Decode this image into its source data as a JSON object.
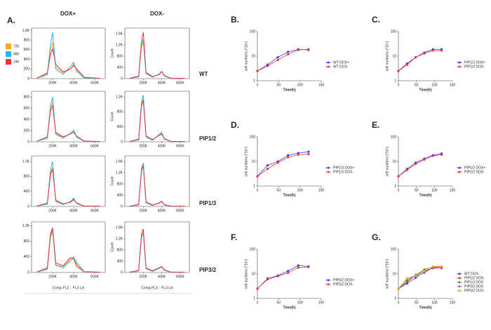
{
  "panel_a": {
    "label": "A.",
    "columns": [
      "DOX+",
      "DOX-"
    ],
    "rows": [
      "WT",
      "PIP1/2",
      "PIP1/3",
      "PIP3/2"
    ]
  },
  "chart_data": [
    {
      "type": "line",
      "legend": "left",
      "x": [
        50000,
        150000,
        180000,
        200000,
        230000,
        300000,
        370000,
        400000,
        430000,
        500000,
        650000
      ],
      "xlim": [
        0,
        700000
      ],
      "xticks": [
        {
          "value": 200000,
          "label": "200K"
        },
        {
          "value": 400000,
          "label": "400K"
        },
        {
          "value": 600000,
          "label": "600K"
        }
      ],
      "ylim": [
        0,
        1050
      ],
      "yticks": [
        0,
        200,
        400,
        600,
        800,
        {
          "value": 1000,
          "label": "1.0K"
        }
      ],
      "series": [
        {
          "name": "72h",
          "color": "#f5a623",
          "values": [
            10,
            100,
            600,
            750,
            250,
            120,
            200,
            300,
            180,
            20,
            5
          ]
        },
        {
          "name": "48h",
          "color": "#29b6e8",
          "values": [
            10,
            80,
            700,
            960,
            200,
            90,
            250,
            340,
            150,
            15,
            5
          ]
        },
        {
          "name": "24h",
          "color": "#e8333c",
          "values": [
            10,
            120,
            500,
            620,
            300,
            140,
            200,
            270,
            200,
            30,
            5
          ]
        }
      ]
    },
    {
      "type": "line",
      "ylabel": "Count",
      "x": [
        50000,
        150000,
        180000,
        200000,
        230000,
        300000,
        370000,
        400000,
        430000,
        500000,
        650000
      ],
      "xlim": [
        0,
        700000
      ],
      "xticks": [
        {
          "value": 200000,
          "label": "200K"
        },
        {
          "value": 400000,
          "label": "400K"
        },
        {
          "value": 600000,
          "label": "600K"
        }
      ],
      "ylim": [
        0,
        1800
      ],
      "yticks": [
        0,
        400,
        800,
        {
          "value": 1200,
          "label": "1.2K"
        },
        {
          "value": 1600,
          "label": "1.6K"
        }
      ],
      "series": [
        {
          "name": "72h",
          "color": "#f5a623",
          "values": [
            10,
            80,
            1100,
            1300,
            200,
            60,
            150,
            250,
            100,
            10,
            5
          ]
        },
        {
          "name": "48h",
          "color": "#29b6e8",
          "values": [
            10,
            60,
            1200,
            1400,
            180,
            50,
            160,
            260,
            90,
            10,
            5
          ]
        },
        {
          "name": "24h",
          "color": "#e8333c",
          "values": [
            10,
            90,
            1300,
            1650,
            220,
            70,
            140,
            240,
            110,
            15,
            5
          ]
        }
      ]
    },
    {
      "type": "line",
      "x": [
        50000,
        150000,
        180000,
        200000,
        230000,
        300000,
        370000,
        400000,
        430000,
        500000,
        650000
      ],
      "xlim": [
        0,
        700000
      ],
      "xticks": [
        {
          "value": 200000,
          "label": "200K"
        },
        {
          "value": 400000,
          "label": "400K"
        },
        {
          "value": 600000,
          "label": "600K"
        }
      ],
      "ylim": [
        0,
        900
      ],
      "yticks": [
        0,
        200,
        400,
        600,
        800
      ],
      "series": [
        {
          "name": "72h",
          "color": "#f5a623",
          "values": [
            10,
            80,
            600,
            700,
            150,
            80,
            150,
            180,
            90,
            10,
            5
          ]
        },
        {
          "name": "48h",
          "color": "#29b6e8",
          "values": [
            10,
            60,
            650,
            800,
            130,
            70,
            150,
            210,
            80,
            10,
            5
          ]
        },
        {
          "name": "24h",
          "color": "#e8333c",
          "values": [
            10,
            90,
            550,
            650,
            170,
            90,
            140,
            170,
            100,
            15,
            5
          ]
        }
      ]
    },
    {
      "type": "line",
      "ylabel": "Count",
      "x": [
        50000,
        150000,
        180000,
        200000,
        230000,
        300000,
        370000,
        400000,
        430000,
        500000,
        650000
      ],
      "xlim": [
        0,
        700000
      ],
      "xticks": [
        {
          "value": 200000,
          "label": "200K"
        },
        {
          "value": 400000,
          "label": "400K"
        },
        {
          "value": 600000,
          "label": "600K"
        }
      ],
      "ylim": [
        0,
        1350
      ],
      "yticks": [
        0,
        400,
        800,
        {
          "value": 1200,
          "label": "1.2K"
        }
      ],
      "series": [
        {
          "name": "72h",
          "color": "#f5a623",
          "values": [
            10,
            60,
            1000,
            1150,
            150,
            50,
            180,
            220,
            80,
            10,
            5
          ]
        },
        {
          "name": "48h",
          "color": "#29b6e8",
          "values": [
            10,
            50,
            1050,
            1250,
            130,
            40,
            190,
            260,
            70,
            10,
            5
          ]
        },
        {
          "name": "24h",
          "color": "#e8333c",
          "values": [
            10,
            70,
            950,
            1100,
            160,
            60,
            170,
            200,
            90,
            10,
            5
          ]
        }
      ]
    },
    {
      "type": "line",
      "x": [
        50000,
        150000,
        180000,
        200000,
        230000,
        300000,
        370000,
        400000,
        430000,
        500000,
        650000
      ],
      "xlim": [
        0,
        700000
      ],
      "xticks": [
        {
          "value": 200000,
          "label": "200K"
        },
        {
          "value": 400000,
          "label": "400K"
        },
        {
          "value": 600000,
          "label": "600K"
        }
      ],
      "ylim": [
        0,
        1350
      ],
      "yticks": [
        0,
        400,
        800,
        {
          "value": 1200,
          "label": "1.2K"
        }
      ],
      "series": [
        {
          "name": "72h",
          "color": "#f5a623",
          "values": [
            10,
            80,
            900,
            1050,
            150,
            60,
            120,
            200,
            80,
            10,
            5
          ]
        },
        {
          "name": "48h",
          "color": "#29b6e8",
          "values": [
            10,
            60,
            1000,
            1200,
            130,
            50,
            130,
            220,
            70,
            10,
            5
          ]
        },
        {
          "name": "24h",
          "color": "#e8333c",
          "values": [
            10,
            90,
            850,
            1000,
            170,
            70,
            110,
            180,
            90,
            10,
            5
          ]
        }
      ]
    },
    {
      "type": "line",
      "ylabel": "Count",
      "x": [
        50000,
        150000,
        180000,
        200000,
        230000,
        300000,
        370000,
        400000,
        430000,
        500000,
        650000
      ],
      "xlim": [
        0,
        700000
      ],
      "xticks": [
        {
          "value": 200000,
          "label": "200K"
        },
        {
          "value": 400000,
          "label": "400K"
        },
        {
          "value": 600000,
          "label": "600K"
        }
      ],
      "ylim": [
        0,
        1800
      ],
      "yticks": [
        0,
        400,
        800,
        {
          "value": 1200,
          "label": "1.2K"
        },
        {
          "value": 1600,
          "label": "1.6K"
        }
      ],
      "series": [
        {
          "name": "72h",
          "color": "#f5a623",
          "values": [
            10,
            60,
            1300,
            1500,
            150,
            40,
            120,
            180,
            60,
            10,
            5
          ]
        },
        {
          "name": "48h",
          "color": "#29b6e8",
          "values": [
            10,
            50,
            1350,
            1550,
            130,
            30,
            130,
            190,
            50,
            10,
            5
          ]
        },
        {
          "name": "24h",
          "color": "#e8333c",
          "values": [
            10,
            70,
            1250,
            1450,
            160,
            50,
            110,
            170,
            70,
            10,
            5
          ]
        }
      ]
    },
    {
      "type": "line",
      "xlabel": "Comp-FL3 :: FL3 Lin",
      "x": [
        50000,
        150000,
        180000,
        200000,
        230000,
        300000,
        370000,
        400000,
        430000,
        500000,
        650000
      ],
      "xlim": [
        0,
        700000
      ],
      "xticks": [
        {
          "value": 200000,
          "label": "200K"
        },
        {
          "value": 400000,
          "label": "400K"
        },
        {
          "value": 600000,
          "label": "600K"
        }
      ],
      "ylim": [
        0,
        1300
      ],
      "yticks": [
        0,
        400,
        800,
        {
          "value": 1200,
          "label": "1.2K"
        }
      ],
      "series": [
        {
          "name": "72h",
          "color": "#f5a623",
          "values": [
            10,
            100,
            900,
            1050,
            200,
            150,
            350,
            400,
            200,
            20,
            5
          ]
        },
        {
          "name": "48h",
          "color": "#29b6e8",
          "values": [
            10,
            80,
            950,
            1100,
            180,
            120,
            300,
            380,
            250,
            20,
            5
          ]
        },
        {
          "name": "24h",
          "color": "#e8333c",
          "values": [
            10,
            120,
            1000,
            1150,
            250,
            170,
            380,
            350,
            150,
            20,
            5
          ]
        }
      ]
    },
    {
      "type": "line",
      "ylabel": "Count",
      "xlabel": "Comp-FL3 :: FL3 Lin",
      "x": [
        50000,
        150000,
        180000,
        200000,
        230000,
        300000,
        370000,
        400000,
        430000,
        500000,
        650000
      ],
      "xlim": [
        0,
        700000
      ],
      "xticks": [
        {
          "value": 200000,
          "label": "200K"
        },
        {
          "value": 400000,
          "label": "400K"
        },
        {
          "value": 600000,
          "label": "600K"
        }
      ],
      "ylim": [
        0,
        1800
      ],
      "yticks": [
        0,
        400,
        800,
        {
          "value": 1200,
          "label": "1.2K"
        },
        {
          "value": 1600,
          "label": "1.6K"
        }
      ],
      "series": [
        {
          "name": "72h",
          "color": "#f5a623",
          "values": [
            10,
            60,
            1300,
            1500,
            150,
            50,
            150,
            200,
            80,
            10,
            5
          ]
        },
        {
          "name": "48h",
          "color": "#29b6e8",
          "values": [
            10,
            50,
            1250,
            1400,
            130,
            40,
            140,
            190,
            70,
            10,
            5
          ]
        },
        {
          "name": "24h",
          "color": "#e8333c",
          "values": [
            10,
            70,
            1350,
            1550,
            160,
            60,
            160,
            210,
            90,
            10,
            5
          ]
        }
      ]
    },
    {
      "type": "line",
      "label": "B.",
      "markers": true,
      "legend": "right",
      "ylog": true,
      "xlabel": "Time(h)",
      "ylabel": "cell numbers (*10⁵)",
      "x": [
        0,
        24,
        48,
        72,
        96,
        120
      ],
      "xlim": [
        0,
        150
      ],
      "xticks": [
        0,
        50,
        100,
        150
      ],
      "ylim": [
        1,
        100
      ],
      "yticks": [
        1,
        10,
        100
      ],
      "series": [
        {
          "name": "WT DOX+",
          "color": "#3b3bf0",
          "values": [
            2.5,
            4.5,
            9,
            15,
            19,
            18
          ]
        },
        {
          "name": "WT DOX-",
          "color": "#e8333c",
          "values": [
            2.5,
            4,
            7,
            12,
            18,
            19
          ]
        }
      ]
    },
    {
      "type": "line",
      "label": "C.",
      "markers": true,
      "legend": "right",
      "ylog": true,
      "xlabel": "Time(h)",
      "ylabel": "cell numbers (*10⁵)",
      "x": [
        0,
        24,
        48,
        72,
        96,
        120
      ],
      "xlim": [
        0,
        150
      ],
      "xticks": [
        0,
        50,
        100,
        150
      ],
      "ylim": [
        1,
        100
      ],
      "yticks": [
        1,
        10,
        100
      ],
      "series": [
        {
          "name": "PIP1/2 DOX+",
          "color": "#3b3bf0",
          "values": [
            2.5,
            5,
            9,
            14,
            19,
            19
          ]
        },
        {
          "name": "PIP1/2 DOX-",
          "color": "#e8333c",
          "values": [
            2.5,
            4.5,
            9,
            13,
            17,
            17
          ]
        }
      ]
    },
    {
      "type": "line",
      "label": "D.",
      "markers": true,
      "legend": "right",
      "ylog": true,
      "xlabel": "Time(h)",
      "ylabel": "cell numbers (*10⁵)",
      "x": [
        0,
        24,
        48,
        72,
        96,
        120
      ],
      "xlim": [
        0,
        150
      ],
      "xticks": [
        0,
        50,
        100,
        150
      ],
      "ylim": [
        1,
        100
      ],
      "yticks": [
        1,
        10,
        100
      ],
      "series": [
        {
          "name": "PIP1/3 DOX+",
          "color": "#3b3bf0",
          "values": [
            2.5,
            7,
            10,
            18,
            22,
            25
          ]
        },
        {
          "name": "PIP1/3 DOX-",
          "color": "#e8333c",
          "values": [
            2.5,
            5,
            9,
            15,
            19,
            20
          ]
        }
      ]
    },
    {
      "type": "line",
      "label": "E.",
      "markers": true,
      "legend": "right",
      "ylog": true,
      "xlabel": "Time(h)",
      "ylabel": "cell numbers (*10⁵)",
      "x": [
        0,
        24,
        48,
        72,
        96,
        120
      ],
      "xlim": [
        0,
        150
      ],
      "xticks": [
        0,
        50,
        100,
        150
      ],
      "ylim": [
        1,
        100
      ],
      "yticks": [
        1,
        10,
        100
      ],
      "series": [
        {
          "name": "PIP1/2 DOX+",
          "color": "#3b3bf0",
          "values": [
            2.5,
            5,
            9,
            13,
            18,
            21
          ]
        },
        {
          "name": "PIP1/2 DOX-",
          "color": "#e8333c",
          "values": [
            2.5,
            4.5,
            8,
            12,
            17,
            19
          ]
        }
      ]
    },
    {
      "type": "line",
      "label": "F.",
      "markers": true,
      "legend": "right",
      "ylog": true,
      "xlabel": "Time(h)",
      "ylabel": "cell numbers (*10⁵)",
      "x": [
        0,
        24,
        48,
        72,
        96,
        120
      ],
      "xlim": [
        0,
        150
      ],
      "xticks": [
        0,
        50,
        100,
        150
      ],
      "ylim": [
        1,
        100
      ],
      "yticks": [
        1,
        10,
        100
      ],
      "series": [
        {
          "name": "PIP3/2 DOX+",
          "color": "#3b3bf0",
          "values": [
            2.5,
            6.5,
            8.5,
            13,
            22,
            20
          ]
        },
        {
          "name": "PIP3/2 DOX-",
          "color": "#e8333c",
          "values": [
            2.5,
            6,
            8,
            11,
            18,
            19
          ]
        }
      ]
    },
    {
      "type": "line",
      "label": "G.",
      "markers": true,
      "legend": "right",
      "ylog": true,
      "xlabel": "Time(h)",
      "ylabel": "cell numbers (*10⁵)",
      "x": [
        0,
        24,
        48,
        72,
        96,
        120
      ],
      "xlim": [
        0,
        150
      ],
      "xticks": [
        0,
        50,
        100,
        150
      ],
      "ylim": [
        1,
        100
      ],
      "yticks": [
        1,
        10,
        100
      ],
      "series": [
        {
          "name": "WT DOX-",
          "color": "#3b3bf0",
          "values": [
            2.5,
            4,
            7,
            12,
            18,
            19
          ]
        },
        {
          "name": "PIP1/2 DOX-",
          "color": "#e8333c",
          "values": [
            2.5,
            4.5,
            9,
            13,
            17,
            17
          ]
        },
        {
          "name": "PIP1/3 DOX",
          "color": "#2ca02c",
          "values": [
            2.5,
            5,
            9,
            15,
            19,
            20
          ]
        },
        {
          "name": "PIP3/2 DOX",
          "color": "#9b59b6",
          "values": [
            2.5,
            6,
            8,
            11,
            18,
            19
          ]
        },
        {
          "name": "PIP3/2 DOX-",
          "color": "#f5a623",
          "values": [
            2.5,
            6.5,
            8.5,
            13,
            20,
            20
          ]
        }
      ]
    }
  ]
}
